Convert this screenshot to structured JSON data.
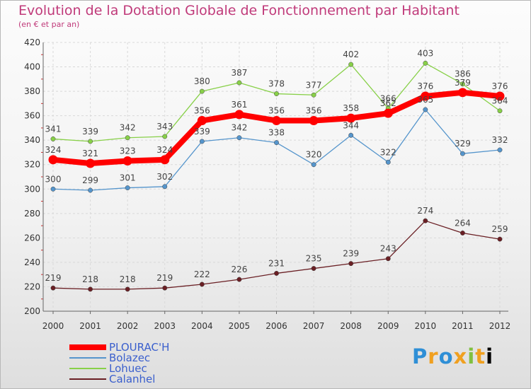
{
  "header": {
    "title": "Evolution de la Dotation Globale de Fonctionnement par Habitant",
    "subtitle": "(en € et par an)"
  },
  "brand": {
    "logo_text": "Proxiti"
  },
  "chart_data": {
    "type": "line",
    "title": "Evolution de la Dotation Globale de Fonctionnement par Habitant",
    "subtitle": "(en € et par an)",
    "xlabel": "",
    "ylabel": "",
    "ylim": [
      200,
      420
    ],
    "yticks": [
      200,
      220,
      240,
      260,
      280,
      300,
      320,
      340,
      360,
      380,
      400,
      420
    ],
    "grid": true,
    "legend_position": "bottom-left",
    "x": [
      "2000",
      "2001",
      "2002",
      "2003",
      "2004",
      "2005",
      "2006",
      "2007",
      "2008",
      "2009",
      "2010",
      "2011",
      "2012"
    ],
    "series": [
      {
        "name": "Lohuec",
        "color": "#88d048",
        "values": [
          341,
          339,
          342,
          343,
          380,
          387,
          378,
          377,
          402,
          366,
          403,
          386,
          364
        ]
      },
      {
        "name": "Bolazec",
        "color": "#5595cc",
        "values": [
          300,
          299,
          301,
          302,
          339,
          342,
          338,
          320,
          344,
          322,
          365,
          329,
          332
        ]
      },
      {
        "name": "Calanhel",
        "color": "#6a1f24",
        "values": [
          219,
          218,
          218,
          219,
          222,
          226,
          231,
          235,
          239,
          243,
          274,
          264,
          259
        ]
      },
      {
        "name": "PLOURAC'H",
        "color": "#ff0000",
        "values": [
          324,
          321,
          323,
          324,
          356,
          361,
          356,
          356,
          358,
          362,
          376,
          379,
          376
        ]
      }
    ],
    "legend": [
      "PLOURAC'H",
      "Bolazec",
      "Lohuec",
      "Calanhel"
    ]
  }
}
